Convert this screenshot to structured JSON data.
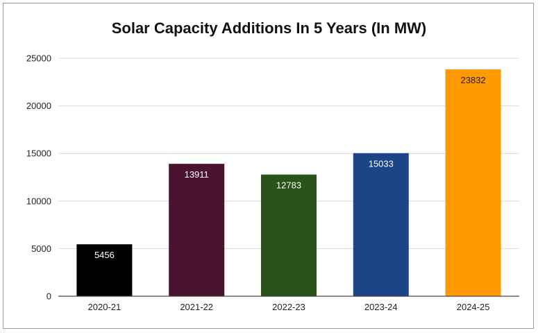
{
  "chart_data": {
    "type": "bar",
    "title": "Solar Capacity Additions In 5 Years (In MW)",
    "xlabel": "",
    "ylabel": "",
    "categories": [
      "2020-21",
      "2021-22",
      "2022-23",
      "2023-24",
      "2024-25"
    ],
    "values": [
      5456,
      13911,
      12783,
      15033,
      23832
    ],
    "data_labels": [
      "5456",
      "13911",
      "12783",
      "15033",
      "23832"
    ],
    "bar_colors": [
      "#000000",
      "#4a1330",
      "#2b5218",
      "#1c4587",
      "#ff9900"
    ],
    "data_label_colors": [
      "#ffffff",
      "#ffffff",
      "#ffffff",
      "#ffffff",
      "#222222"
    ],
    "ylim": [
      0,
      25000
    ],
    "y_ticks": [
      0,
      5000,
      10000,
      15000,
      20000,
      25000
    ],
    "grid": true,
    "gridline_color": "#d9d9d9",
    "axis_color": "#444444",
    "legend": "none"
  }
}
